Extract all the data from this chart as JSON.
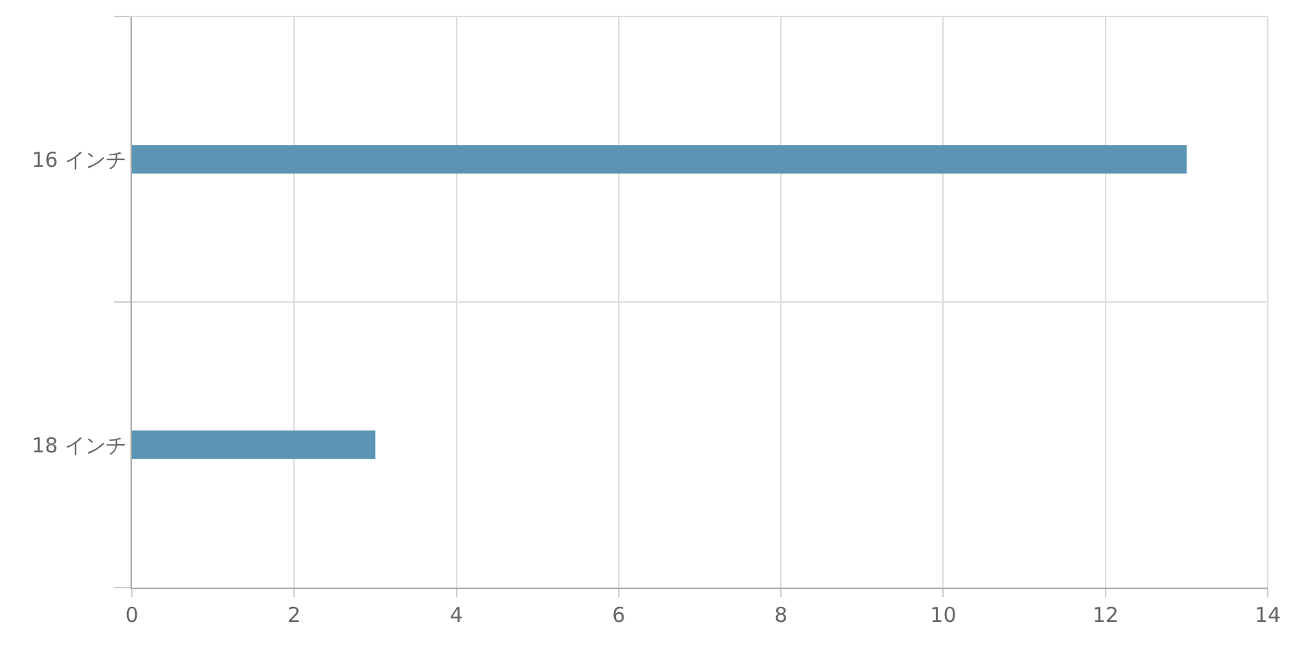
{
  "chart_data": {
    "type": "bar",
    "orientation": "horizontal",
    "categories": [
      "16 インチ",
      "18 インチ"
    ],
    "values": [
      13,
      3
    ],
    "color": "#5b95b3",
    "xlim": [
      0,
      14
    ],
    "xticks": [
      0,
      2,
      4,
      6,
      8,
      10,
      12,
      14
    ],
    "grid": true,
    "legend": false
  }
}
